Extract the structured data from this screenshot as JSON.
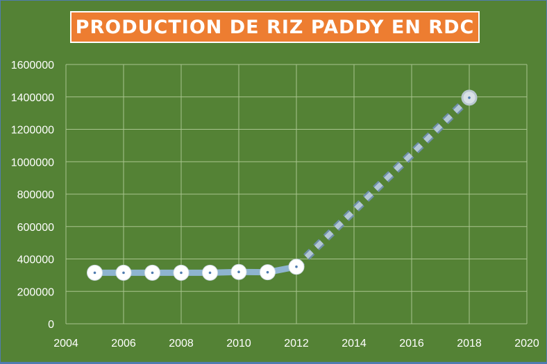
{
  "chart_data": {
    "type": "line",
    "title": "PRODUCTION DE RIZ PADDY EN RDC",
    "xlabel": "",
    "ylabel": "",
    "xlim": [
      2004,
      2020
    ],
    "ylim": [
      0,
      1600000
    ],
    "x_ticks": [
      "2004",
      "2006",
      "2008",
      "2010",
      "2012",
      "2014",
      "2016",
      "2018",
      "2020"
    ],
    "y_ticks": [
      "0",
      "200000",
      "400000",
      "600000",
      "800000",
      "1000000",
      "1200000",
      "1400000",
      "1600000"
    ],
    "grid": true,
    "legend": "none",
    "series": [
      {
        "style": "solid",
        "x": [
          2005,
          2006,
          2007,
          2008,
          2009,
          2010,
          2011,
          2012
        ],
        "values": [
          315000,
          315000,
          315000,
          315000,
          315000,
          320000,
          318000,
          352000
        ]
      },
      {
        "style": "dotted",
        "x": [
          2012,
          2018
        ],
        "values": [
          352000,
          1395000
        ]
      }
    ],
    "colors": {
      "background": "#548235",
      "title_box": "#ed7d31",
      "line": "#8eb4d0",
      "marker": "#ffffff",
      "grid": "#a9c48e"
    }
  }
}
